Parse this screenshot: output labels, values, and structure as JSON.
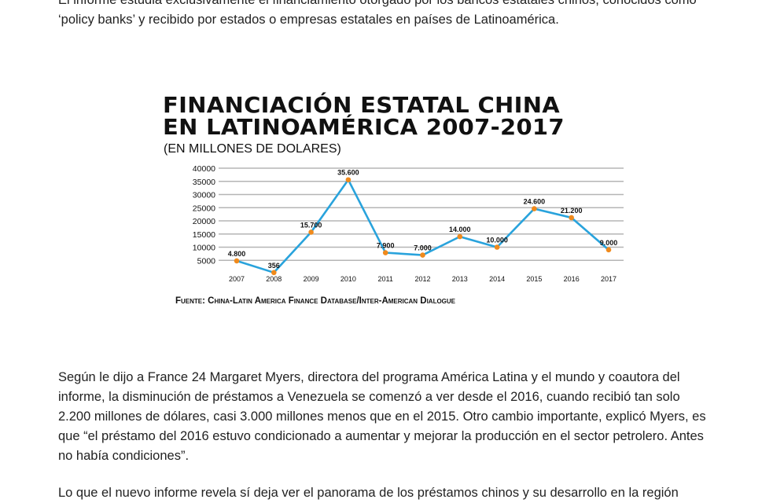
{
  "article": {
    "paragraph_top": [
      "El informe estudia exclusivamente el financiamiento otorgado por los bancos estatales chinos, conocidos como",
      "‘policy banks’ y recibido por estados o empresas estatales en países de Latinoamérica."
    ],
    "paragraph_mid": [
      "Según le dijo a France 24 Margaret Myers, directora del programa América Latina y el mundo y coautora del",
      "informe, la disminución de préstamos a Venezuela se comenzó a ver desde el 2016, cuando recibió tan solo",
      "2.200 millones de dólares, casi 3.000 millones menos que en el 2015. Otro cambio importante, explicó Myers, es",
      "que “el préstamo del 2016 estuvo condicionado a aumentar y mejorar la producción en el sector petrolero. Antes",
      "no había condiciones”."
    ],
    "paragraph_bottom": [
      "Lo que el nuevo informe revela sí deja ver el panorama de los préstamos chinos y su desarrollo en la región"
    ]
  },
  "chart_data": {
    "type": "line",
    "title_lines": [
      "FINANCIACIÓN ESTATAL CHINA",
      "EN LATINOAMÉRICA 2007-2017"
    ],
    "subtitle": "(EN MILLONES DE DOLARES)",
    "source": "Fuente: China-Latin America Finance Database/Inter-American Dialogue",
    "categories": [
      "2007",
      "2008",
      "2009",
      "2010",
      "2011",
      "2012",
      "2013",
      "2014",
      "2015",
      "2016",
      "2017"
    ],
    "values": [
      4800,
      356,
      15700,
      35600,
      7900,
      7000,
      14000,
      10000,
      24600,
      21200,
      9000
    ],
    "data_labels": [
      "4.800",
      "356",
      "15.700",
      "35.600",
      "7.900",
      "7.000",
      "14.000",
      "10.000",
      "24.600",
      "21.200",
      "9.000"
    ],
    "y_ticks": [
      40000,
      35000,
      30000,
      25000,
      20000,
      15000,
      10000,
      5000
    ],
    "ylim": [
      0,
      40000
    ],
    "grid": true,
    "line_color": "#29a3dc",
    "marker_color": "#f08a1c"
  }
}
